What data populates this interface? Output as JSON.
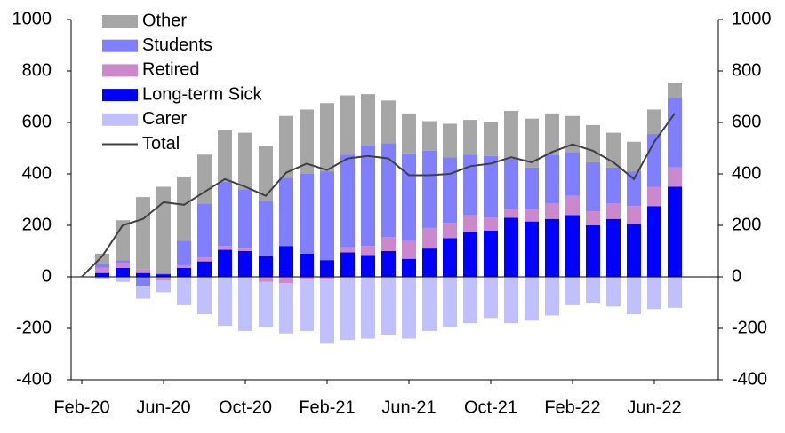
{
  "chart_data": {
    "type": "bar",
    "stacked": true,
    "categories": [
      "Feb-20",
      null,
      null,
      null,
      "Jun-20",
      null,
      null,
      null,
      "Oct-20",
      null,
      null,
      null,
      "Feb-21",
      null,
      null,
      null,
      "Jun-21",
      null,
      null,
      null,
      "Oct-21",
      null,
      null,
      null,
      "Feb-22",
      null,
      null,
      null,
      "Jun-22",
      null
    ],
    "series": [
      {
        "name": "Other",
        "color": "#a6a6a6",
        "values": [
          null,
          40,
          155,
          280,
          335,
          250,
          190,
          200,
          220,
          215,
          240,
          250,
          265,
          230,
          200,
          165,
          155,
          115,
          130,
          135,
          130,
          185,
          190,
          160,
          140,
          145,
          135,
          115,
          95,
          60
        ]
      },
      {
        "name": "Students",
        "color": "#7f7fff",
        "values": [
          null,
          15,
          10,
          -35,
          5,
          95,
          210,
          250,
          230,
          215,
          265,
          310,
          345,
          360,
          390,
          365,
          340,
          300,
          255,
          235,
          240,
          195,
          160,
          190,
          170,
          190,
          140,
          135,
          205,
          270
        ]
      },
      {
        "name": "Retired",
        "color": "#cc88cc",
        "values": [
          null,
          20,
          20,
          15,
          -15,
          10,
          15,
          15,
          10,
          -20,
          -25,
          -10,
          -10,
          20,
          35,
          55,
          70,
          80,
          60,
          65,
          50,
          35,
          50,
          60,
          75,
          55,
          60,
          70,
          75,
          75
        ]
      },
      {
        "name": "Long-term Sick",
        "color": "#0000ff",
        "values": [
          null,
          15,
          35,
          15,
          10,
          35,
          60,
          105,
          100,
          80,
          120,
          90,
          65,
          95,
          85,
          100,
          70,
          110,
          150,
          175,
          180,
          230,
          215,
          225,
          240,
          200,
          225,
          205,
          275,
          350
        ]
      },
      {
        "name": "Carer",
        "color": "#c0c0ff",
        "values": [
          null,
          -10,
          -20,
          -50,
          -45,
          -110,
          -145,
          -190,
          -210,
          -175,
          -195,
          -200,
          -250,
          -245,
          -240,
          -225,
          -240,
          -210,
          -195,
          -180,
          -160,
          -180,
          -170,
          -150,
          -110,
          -100,
          -115,
          -145,
          -125,
          -120
        ]
      },
      {
        "name": "Total",
        "color": "#404040",
        "type": "line",
        "values": [
          0,
          80,
          200,
          225,
          290,
          280,
          330,
          380,
          350,
          315,
          405,
          440,
          415,
          460,
          470,
          460,
          395,
          395,
          400,
          430,
          440,
          465,
          445,
          485,
          515,
          490,
          445,
          380,
          525,
          635
        ]
      }
    ],
    "ylim": [
      -400,
      1000
    ],
    "yticks": [
      -400,
      -200,
      0,
      200,
      400,
      600,
      800,
      1000
    ],
    "y2lim": [
      -400,
      1000
    ],
    "y2ticks": [
      -400,
      -200,
      0,
      200,
      400,
      600,
      800,
      1000
    ]
  }
}
